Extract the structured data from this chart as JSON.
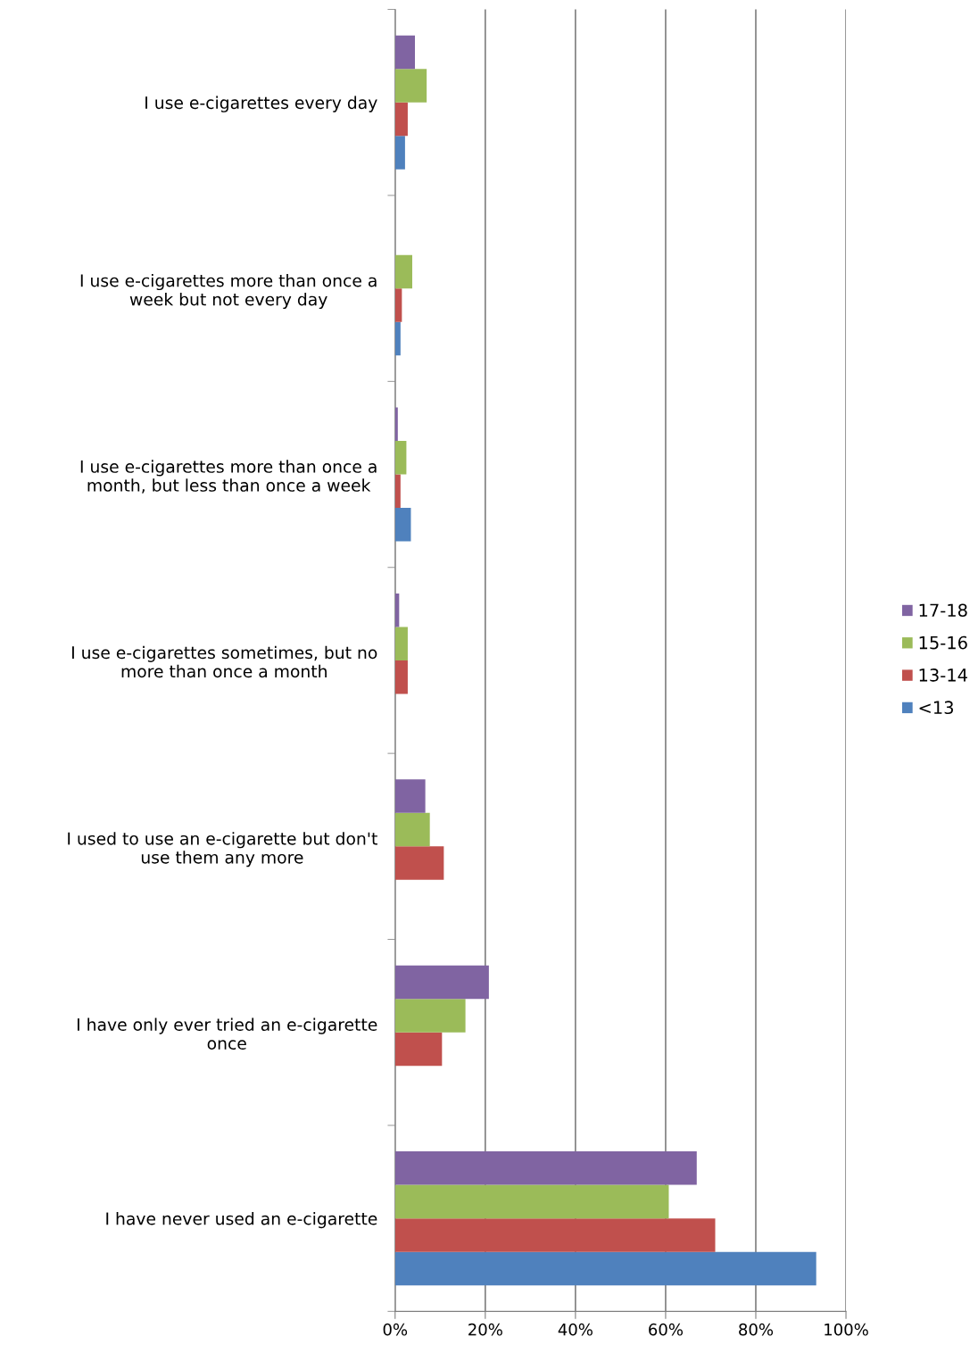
{
  "chart_data": {
    "type": "bar",
    "orientation": "horizontal",
    "categories": [
      "I use e-cigarettes every day",
      "I use e-cigarettes more than once a\nweek but not every day",
      "I use e-cigarettes more than once a\nmonth, but less than once a week",
      "I use e-cigarettes sometimes, but no\nmore than once a month",
      "I used to use an e-cigarette but don't\nuse them any more",
      "I have only ever tried an e-cigarette\nonce",
      "I have never used an e-cigarette"
    ],
    "series": [
      {
        "name": "<13",
        "color": "#4f81bd",
        "values": [
          2.2,
          1.2,
          3.5,
          0,
          0,
          0,
          93.4
        ]
      },
      {
        "name": "13-14",
        "color": "#c0504d",
        "values": [
          2.8,
          1.5,
          1.2,
          2.8,
          10.8,
          10.4,
          71
        ]
      },
      {
        "name": "15-16",
        "color": "#9bbb59",
        "values": [
          7.0,
          3.8,
          2.5,
          2.8,
          7.7,
          15.6,
          60.7
        ]
      },
      {
        "name": "17-18",
        "color": "#8064a2",
        "values": [
          4.4,
          0,
          0.6,
          0.9,
          6.7,
          20.8,
          66.9
        ]
      }
    ],
    "xlim": [
      0,
      100
    ],
    "xticks": [
      {
        "value": 0,
        "label": "0%"
      },
      {
        "value": 20,
        "label": "20%"
      },
      {
        "value": 40,
        "label": "40%"
      },
      {
        "value": 60,
        "label": "60%"
      },
      {
        "value": 80,
        "label": "80%"
      },
      {
        "value": 100,
        "label": "100%"
      }
    ],
    "grid": "x",
    "legend": "right"
  }
}
